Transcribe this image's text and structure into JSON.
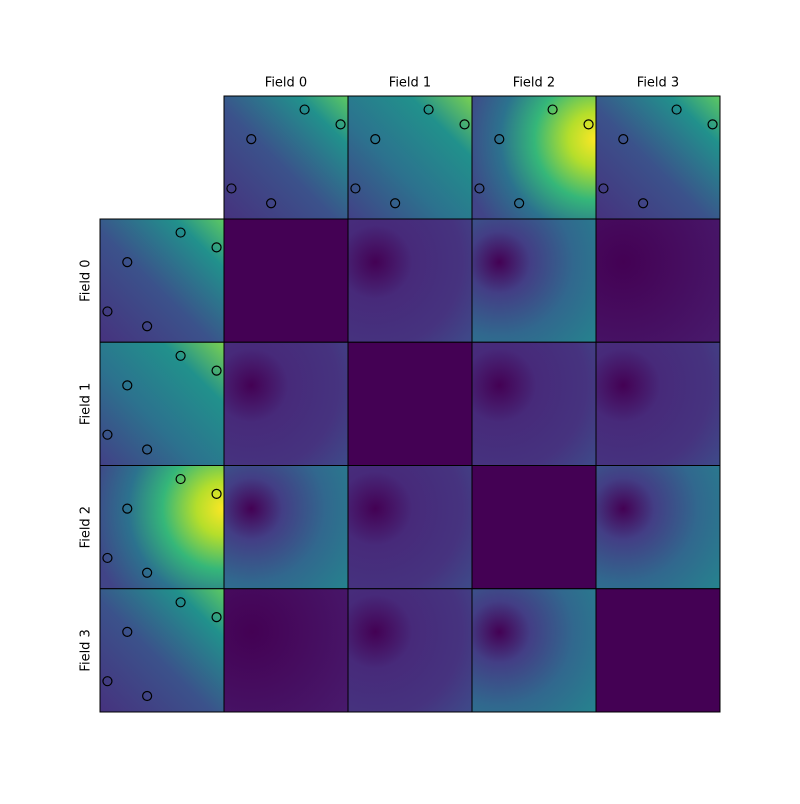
{
  "chart_data": {
    "type": "image_grid",
    "fields": [
      "Field 0",
      "Field 1",
      "Field 2",
      "Field 3"
    ],
    "points": {
      "x": [
        0.65,
        0.94,
        0.22,
        0.06,
        0.38
      ],
      "y": [
        0.89,
        0.77,
        0.65,
        0.25,
        0.13
      ]
    },
    "colormap": "viridis"
  }
}
